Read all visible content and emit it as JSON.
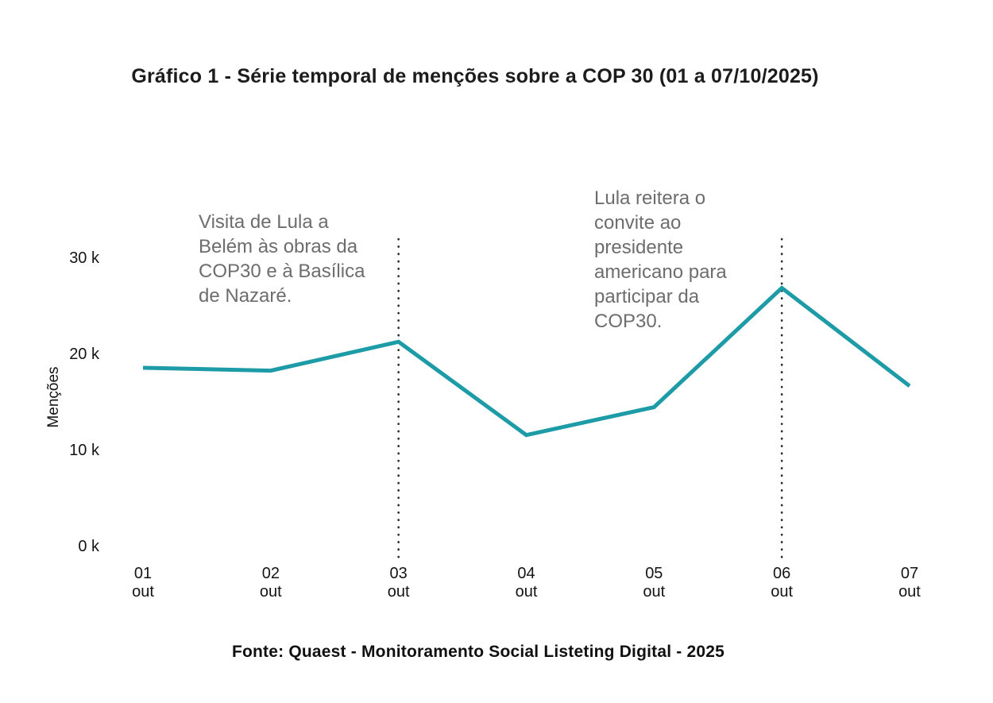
{
  "page": {
    "source": "Fonte: Quaest - Monitoramento Social Listeting Digital - 2025"
  },
  "chart_data": {
    "type": "line",
    "title": "Gráfico 1 - Série temporal de menções sobre a COP 30 (01 a 07/10/2025)",
    "xlabel": "",
    "ylabel": "Menções",
    "categories": [
      "01 out",
      "02 out",
      "03 out",
      "04 out",
      "05 out",
      "06 out",
      "07 out"
    ],
    "x_tick_labels": [
      [
        "01",
        "out"
      ],
      [
        "02",
        "out"
      ],
      [
        "03",
        "out"
      ],
      [
        "04",
        "out"
      ],
      [
        "05",
        "out"
      ],
      [
        "06",
        "out"
      ],
      [
        "07",
        "out"
      ]
    ],
    "series": [
      {
        "name": "Menções",
        "values": [
          18600,
          18300,
          21300,
          11600,
          14500,
          26900,
          16700
        ]
      }
    ],
    "y_ticks": [
      0,
      10000,
      20000,
      30000
    ],
    "y_tick_labels": [
      "0 k",
      "10 k",
      "20 k",
      "30 k"
    ],
    "ylim": [
      0,
      32000
    ],
    "grid": false,
    "legend": false,
    "line_color": "#1d9ba7",
    "marker_line_color": "#2b2b2b",
    "annotation_text_color": "#6d6d6d",
    "annotations": [
      {
        "text": "Visita de Lula a Belém às obras da COP30 e à Basílica de Nazaré.",
        "lines": [
          "Visita de Lula a",
          "Belém às obras da",
          "COP30 e à Basílica",
          "de Nazaré."
        ],
        "category": "03 out",
        "category_index": 2,
        "marker": "dotted-vertical-line"
      },
      {
        "text": "Lula reitera o convite ao presidente americano para participar da COP30.",
        "lines": [
          "Lula reitera o",
          "convite ao",
          "presidente",
          "americano para",
          "participar da",
          "COP30."
        ],
        "category": "06 out",
        "category_index": 5,
        "marker": "dotted-vertical-line"
      }
    ]
  }
}
